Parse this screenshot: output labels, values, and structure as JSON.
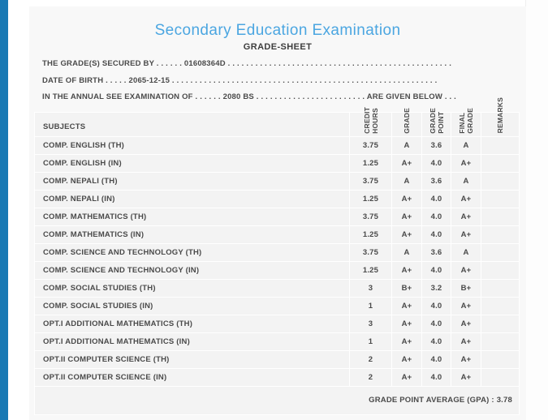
{
  "page": {
    "title": "Secondary Education Examination",
    "subtitle": "GRADE-SHEET"
  },
  "colors": {
    "accent_bar": "#1979b4",
    "title_text": "#4ba6e1",
    "panel_background": "#f8f8f8",
    "cell_background": "#f3f3f3",
    "body_text": "#4a4a4a"
  },
  "student": {
    "symbol_number": "01608364D",
    "date_of_birth": "2065-12-15",
    "examination_year": "2080 BS",
    "info_lines": [
      "THE GRADE(S) SECURED BY . . . . . . 01608364D . . . . . . . . . . . . . . . . . . . . . . . . . . . . . . . . . . . . . . . . . . . . . . . . .",
      "DATE OF BIRTH . . . . . 2065-12-15 . . . . . . . . . . . . . . . . . . . . . . . . . . . . . . . . . . . . . . . . . . . . . . . . . . . . . . . . . .",
      "IN THE ANNUAL SEE EXAMINATION OF . . . . . . 2080 BS . . . . . . . . . . . . . . . . . . . . . . . . ARE GIVEN BELOW . . ."
    ]
  },
  "table": {
    "columns": [
      "SUBJECTS",
      "CREDIT\nHOURS",
      "GRADE",
      "GRADE\nPOINT",
      "FINAL\nGRADE",
      "REMARKS"
    ],
    "rows": [
      {
        "subject": "COMP. ENGLISH (TH)",
        "credit_hours": "3.75",
        "grade": "A",
        "grade_point": "3.6",
        "final_grade": "A",
        "remarks": ""
      },
      {
        "subject": "COMP. ENGLISH (IN)",
        "credit_hours": "1.25",
        "grade": "A+",
        "grade_point": "4.0",
        "final_grade": "A+",
        "remarks": ""
      },
      {
        "subject": "COMP. NEPALI (TH)",
        "credit_hours": "3.75",
        "grade": "A",
        "grade_point": "3.6",
        "final_grade": "A",
        "remarks": ""
      },
      {
        "subject": "COMP. NEPALI (IN)",
        "credit_hours": "1.25",
        "grade": "A+",
        "grade_point": "4.0",
        "final_grade": "A+",
        "remarks": ""
      },
      {
        "subject": "COMP. MATHEMATICS (TH)",
        "credit_hours": "3.75",
        "grade": "A+",
        "grade_point": "4.0",
        "final_grade": "A+",
        "remarks": ""
      },
      {
        "subject": "COMP. MATHEMATICS (IN)",
        "credit_hours": "1.25",
        "grade": "A+",
        "grade_point": "4.0",
        "final_grade": "A+",
        "remarks": ""
      },
      {
        "subject": "COMP. SCIENCE AND TECHNOLOGY (TH)",
        "credit_hours": "3.75",
        "grade": "A",
        "grade_point": "3.6",
        "final_grade": "A",
        "remarks": ""
      },
      {
        "subject": "COMP. SCIENCE AND TECHNOLOGY (IN)",
        "credit_hours": "1.25",
        "grade": "A+",
        "grade_point": "4.0",
        "final_grade": "A+",
        "remarks": ""
      },
      {
        "subject": "COMP. SOCIAL STUDIES (TH)",
        "credit_hours": "3",
        "grade": "B+",
        "grade_point": "3.2",
        "final_grade": "B+",
        "remarks": ""
      },
      {
        "subject": "COMP. SOCIAL STUDIES (IN)",
        "credit_hours": "1",
        "grade": "A+",
        "grade_point": "4.0",
        "final_grade": "A+",
        "remarks": ""
      },
      {
        "subject": "OPT.I ADDITIONAL MATHEMATICS (TH)",
        "credit_hours": "3",
        "grade": "A+",
        "grade_point": "4.0",
        "final_grade": "A+",
        "remarks": ""
      },
      {
        "subject": "OPT.I ADDITIONAL MATHEMATICS (IN)",
        "credit_hours": "1",
        "grade": "A+",
        "grade_point": "4.0",
        "final_grade": "A+",
        "remarks": ""
      },
      {
        "subject": "OPT.II COMPUTER SCIENCE (TH)",
        "credit_hours": "2",
        "grade": "A+",
        "grade_point": "4.0",
        "final_grade": "A+",
        "remarks": ""
      },
      {
        "subject": "OPT.II COMPUTER SCIENCE (IN)",
        "credit_hours": "2",
        "grade": "A+",
        "grade_point": "4.0",
        "final_grade": "A+",
        "remarks": ""
      }
    ],
    "footer": {
      "label": "GRADE POINT AVERAGE (GPA) :",
      "value": "3.78"
    }
  }
}
